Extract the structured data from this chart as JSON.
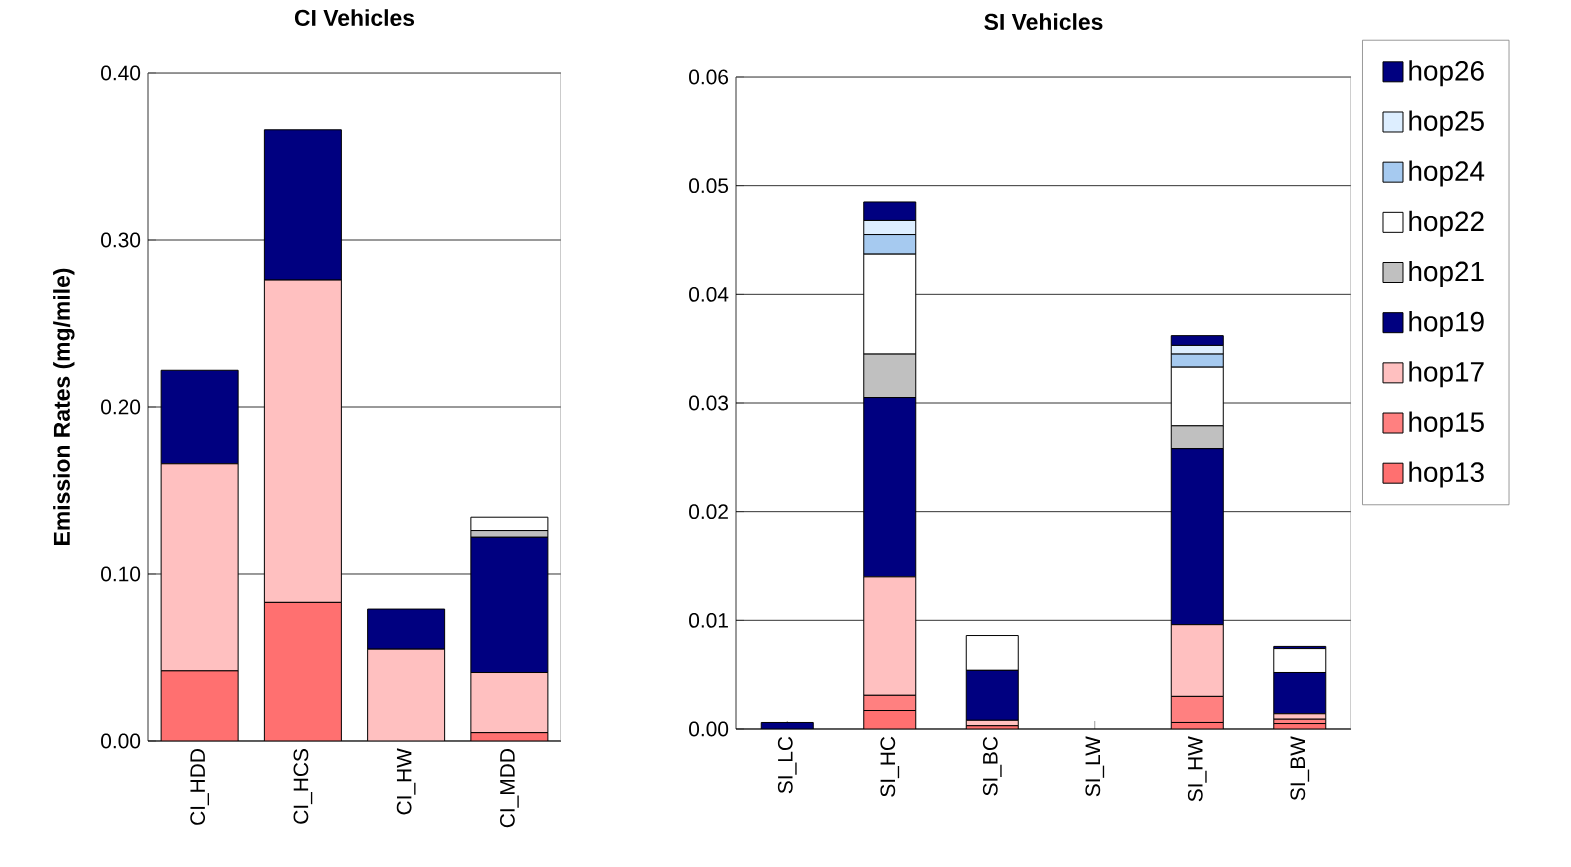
{
  "chart_data": [
    {
      "type": "bar",
      "title": "CI Vehicles",
      "ylabel": "Emission Rates (mg/mile)",
      "categories": [
        "CI_HDD",
        "CI_HCS",
        "CI_HW",
        "CI_MDD"
      ],
      "stacked": true,
      "grid": "y",
      "legend": false,
      "ylim": [
        0,
        0.4
      ],
      "yticks": [
        {
          "value": 0,
          "label": "0.00"
        },
        {
          "value": 0.1,
          "label": "0.10"
        },
        {
          "value": 0.2,
          "label": "0.20"
        },
        {
          "value": 0.3,
          "label": "0.30"
        },
        {
          "value": 0.4,
          "label": "0.40"
        }
      ],
      "series": [
        {
          "color": "#ff7070",
          "values": [
            0.042,
            0.083,
            0,
            0.005
          ]
        },
        {
          "color": "#ffc0c0",
          "values": [
            0.124,
            0.193,
            0.055,
            0.036
          ]
        },
        {
          "color": "#000080",
          "values": [
            0.056,
            0.09,
            0.024,
            0.081
          ]
        },
        {
          "color": "#c0c0c0",
          "values": [
            0,
            0,
            0,
            0.004
          ]
        },
        {
          "color": "#ffffff",
          "values": [
            0,
            0,
            0,
            0.008
          ]
        },
        {
          "color": "#a6caf0",
          "values": [
            0,
            0,
            0,
            null
          ]
        }
      ]
    },
    {
      "type": "bar",
      "title": "SI Vehicles",
      "categories": [
        "SI_LC",
        "SI_HC",
        "SI_BC",
        "SI_LW",
        "SI_HW",
        "SI_BW"
      ],
      "stacked": true,
      "grid": "y",
      "legend": "right",
      "ylim": [
        0,
        0.06
      ],
      "yticks": [
        {
          "value": 0,
          "label": "0.00"
        },
        {
          "value": 0.01,
          "label": "0.01"
        },
        {
          "value": 0.02,
          "label": "0.02"
        },
        {
          "value": 0.03,
          "label": "0.03"
        },
        {
          "value": 0.04,
          "label": "0.04"
        },
        {
          "value": 0.05,
          "label": "0.05"
        },
        {
          "value": 0.06,
          "label": "0.06"
        }
      ],
      "series": [
        {
          "name": "hop13",
          "color": "#ff7070",
          "values": [
            null,
            0.0017,
            0.0003,
            0,
            0.0006,
            0.0005
          ]
        },
        {
          "name": "hop15",
          "color": "#ff8080",
          "values": [
            0,
            0.0014,
            0,
            0,
            0.0024,
            0.0004
          ]
        },
        {
          "name": "hop17",
          "color": "#ffc0c0",
          "values": [
            null,
            0.0109,
            0.0005,
            0,
            0.0066,
            0.0005
          ]
        },
        {
          "name": "hop19",
          "color": "#000080",
          "values": [
            0.0006,
            0.0165,
            0.0046,
            null,
            0.0162,
            0.0038
          ]
        },
        {
          "name": "hop21",
          "color": "#c0c0c0",
          "values": [
            0,
            0.004,
            0,
            0,
            0.0021,
            0
          ]
        },
        {
          "name": "hop22",
          "color": "#ffffff",
          "values": [
            0,
            0.0092,
            0.0032,
            0,
            0.0054,
            0.0022
          ]
        },
        {
          "name": "hop24",
          "color": "#a6caf0",
          "values": [
            0,
            0.0018,
            0,
            0,
            0.0012,
            0
          ]
        },
        {
          "name": "hop25",
          "color": "#ddeeff",
          "values": [
            0,
            0.0013,
            0,
            0,
            0.0008,
            0
          ]
        },
        {
          "name": "hop26",
          "color": "#000080",
          "values": [
            0,
            0.0017,
            0,
            0,
            0.0009,
            0.0002
          ]
        }
      ]
    }
  ]
}
